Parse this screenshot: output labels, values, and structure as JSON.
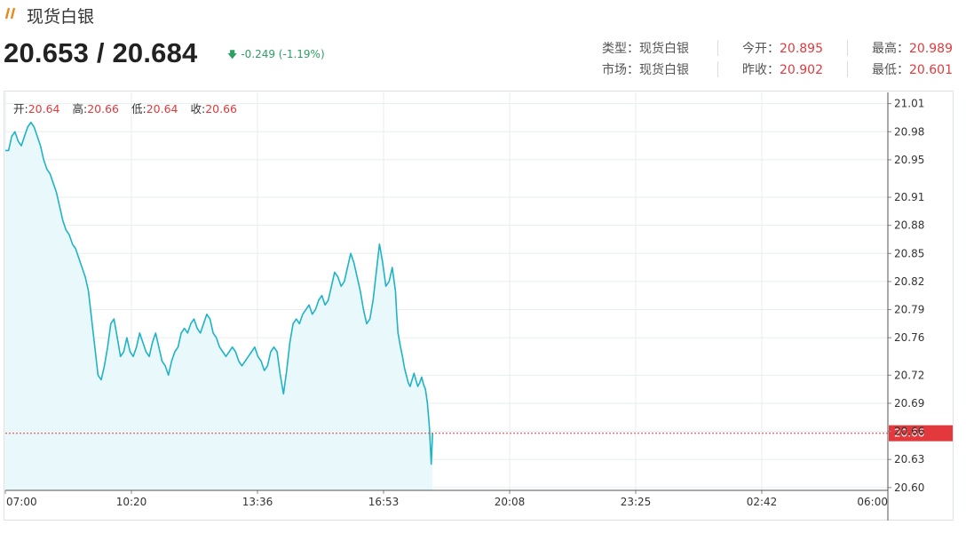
{
  "header": {
    "title": "现货白银",
    "price_pair": "20.653 / 20.684",
    "change": "-0.249 (-1.19%)",
    "type_label": "类型：",
    "type_value": "现货白银",
    "market_label": "市场：",
    "market_value": "现货白银",
    "open_label": "今开：",
    "open_value": "20.895",
    "prev_close_label": "昨收：",
    "prev_close_value": "20.902",
    "high_label": "最高：",
    "high_value": "20.989",
    "low_label": "最低：",
    "low_value": "20.601"
  },
  "ohlc": {
    "open_label": "开:",
    "open_value": "20.64",
    "high_label": "高:",
    "high_value": "20.66",
    "low_label": "低:",
    "low_value": "20.64",
    "close_label": "收:",
    "close_value": "20.66"
  },
  "colors": {
    "line": "#1fb3c9",
    "fill": "#e9f8fa",
    "up": "#e4393c",
    "down": "#2e9f63",
    "grid": "#e6eef0",
    "current_price_tag": "#e4393c"
  },
  "chart_data": {
    "type": "area",
    "title": "",
    "xlabel": "",
    "ylabel": "",
    "x_ticks": [
      "07:00",
      "10:20",
      "13:36",
      "16:53",
      "20:08",
      "23:25",
      "02:42",
      "06:00"
    ],
    "y_ticks": [
      "21.01",
      "20.98",
      "20.95",
      "20.91",
      "20.88",
      "20.85",
      "20.82",
      "20.79",
      "20.76",
      "20.72",
      "20.69",
      "20.66",
      "20.63",
      "20.60"
    ],
    "ylim": [
      20.597,
      21.022
    ],
    "xlim": [
      0,
      1380
    ],
    "x_unit": "minutes after 07:00",
    "current_price": "20.66",
    "current_price_value": 20.658,
    "series": [
      {
        "x": [
          0,
          5,
          10,
          15,
          20,
          25,
          30,
          35,
          40,
          45,
          50,
          55,
          60,
          65,
          70,
          75,
          80,
          85,
          90,
          95,
          100,
          105,
          110,
          115,
          120,
          125,
          130,
          135,
          140,
          145,
          150,
          155,
          160,
          165,
          170,
          175,
          180,
          185,
          190,
          195,
          200,
          205,
          210,
          215,
          220,
          225,
          230,
          235,
          240,
          245,
          250,
          255,
          260,
          265,
          270,
          275,
          280,
          285,
          290,
          295,
          300,
          305,
          310,
          315,
          320,
          325,
          330,
          335,
          340,
          345,
          350,
          355,
          360,
          365,
          370,
          375,
          380,
          385,
          390,
          395,
          400,
          405,
          410,
          415,
          420,
          425,
          430,
          435,
          440,
          445,
          450,
          455,
          460,
          465,
          470,
          475,
          480,
          485,
          490,
          495,
          500,
          505,
          510,
          515,
          520,
          525,
          530,
          535,
          540,
          545,
          550,
          555,
          560,
          565,
          570,
          575,
          580,
          585,
          590,
          595,
          600,
          605,
          610,
          612,
          614
        ],
        "values": [
          20.96,
          20.96,
          20.975,
          20.98,
          20.97,
          20.965,
          20.975,
          20.985,
          20.99,
          20.985,
          20.975,
          20.965,
          20.95,
          20.94,
          20.935,
          20.925,
          20.915,
          20.9,
          20.885,
          20.875,
          20.87,
          20.86,
          20.855,
          20.845,
          20.835,
          20.825,
          20.81,
          20.78,
          20.75,
          20.72,
          20.715,
          20.73,
          20.75,
          20.775,
          20.78,
          20.76,
          20.74,
          20.745,
          20.76,
          20.745,
          20.74,
          20.75,
          20.765,
          20.755,
          20.745,
          20.74,
          20.755,
          20.765,
          20.75,
          20.735,
          20.73,
          20.72,
          20.735,
          20.745,
          20.75,
          20.765,
          20.77,
          20.765,
          20.775,
          20.78,
          20.77,
          20.765,
          20.775,
          20.785,
          20.78,
          20.765,
          20.76,
          20.75,
          20.745,
          20.74,
          20.745,
          20.75,
          20.745,
          20.735,
          20.73,
          20.735,
          20.74,
          20.745,
          20.75,
          20.74,
          20.735,
          20.725,
          20.73,
          20.745,
          20.75,
          20.745,
          20.72,
          20.7,
          20.725,
          20.755,
          20.775,
          20.78,
          20.775,
          20.785,
          20.79,
          20.795,
          20.785,
          20.79,
          20.8,
          20.805,
          20.795,
          20.8,
          20.815,
          20.83,
          20.825,
          20.815,
          20.82,
          20.835,
          20.85,
          20.84,
          20.825,
          20.81,
          20.79,
          20.775,
          20.78,
          20.8,
          20.83,
          20.86,
          20.84,
          20.815,
          20.82,
          20.835,
          20.81,
          20.785,
          20.765
        ]
      },
      {
        "x": [
          614,
          618,
          621,
          624,
          627,
          630,
          633,
          636,
          639,
          642,
          645,
          648,
          651,
          654,
          657,
          660,
          663,
          666,
          668
        ],
        "values": [
          20.765,
          20.75,
          20.74,
          20.728,
          20.72,
          20.712,
          20.708,
          20.715,
          20.722,
          20.715,
          20.708,
          20.712,
          20.718,
          20.71,
          20.705,
          20.69,
          20.665,
          20.625,
          20.658
        ]
      }
    ]
  }
}
